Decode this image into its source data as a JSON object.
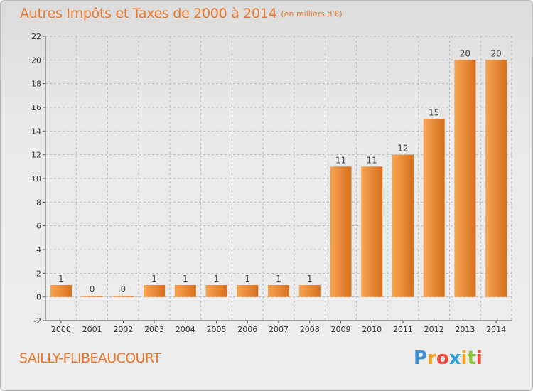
{
  "title": "Autres Impôts et Taxes de 2000 à 2014",
  "unit": "(en milliers d'€)",
  "commune": "SAILLY-FLIBEAUCOURT",
  "logo": {
    "letters": [
      "P",
      "r",
      "o",
      "x",
      "i",
      "t",
      "i"
    ],
    "colors": [
      "#3a8fd6",
      "#f39c1f",
      "#ef4a3c",
      "#2f9ed9",
      "#f3a01f",
      "#8cc63f",
      "#ef4a3c"
    ]
  },
  "colors": {
    "bar_light": "#f7a553",
    "bar_dark": "#d66f1c",
    "title": "#e9782b",
    "axis_text": "#333333",
    "grid": "#b9b9b9"
  },
  "chart_data": {
    "type": "bar",
    "categories": [
      "2000",
      "2001",
      "2002",
      "2003",
      "2004",
      "2005",
      "2006",
      "2007",
      "2008",
      "2009",
      "2010",
      "2011",
      "2012",
      "2013",
      "2014"
    ],
    "values": [
      1,
      0,
      0,
      1,
      1,
      1,
      1,
      1,
      1,
      11,
      11,
      12,
      15,
      20,
      20
    ],
    "labels": [
      "1",
      "0",
      "0",
      "1",
      "1",
      "1",
      "1",
      "1",
      "1",
      "11",
      "11",
      "12",
      "15",
      "20",
      "20"
    ],
    "ylim": [
      -2,
      22
    ],
    "yticks": [
      -2,
      0,
      2,
      4,
      6,
      8,
      10,
      12,
      14,
      16,
      18,
      20,
      22
    ],
    "grid": true,
    "grid_style": "dashed horizontal"
  }
}
